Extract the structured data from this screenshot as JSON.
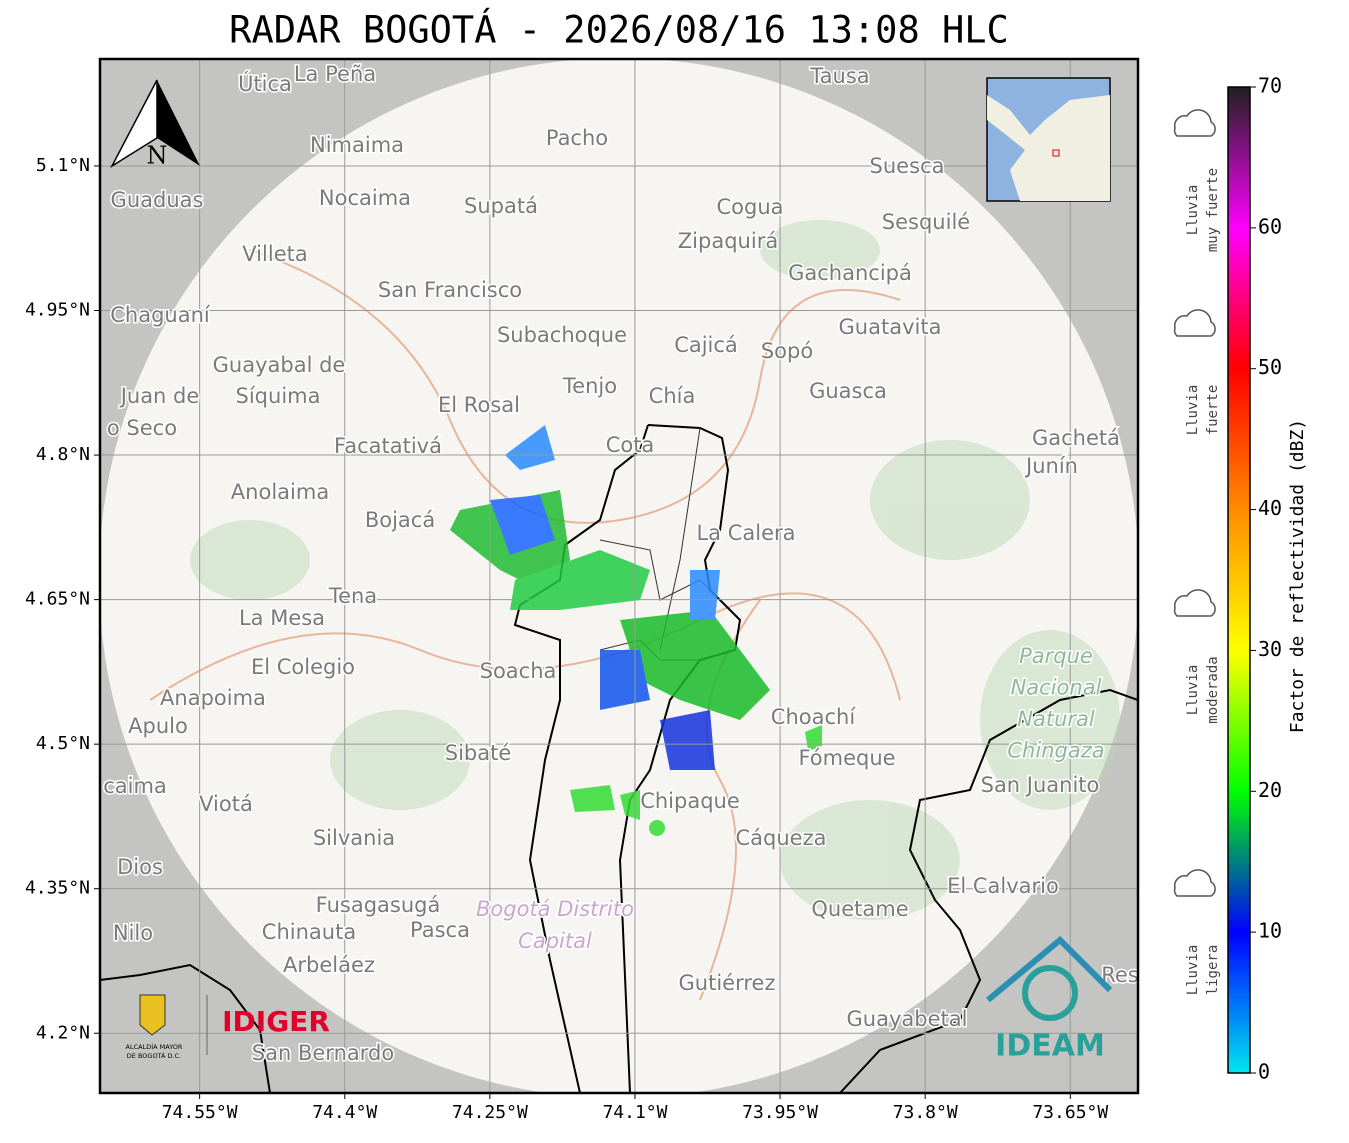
{
  "title": "RADAR BOGOTÁ - 2026/08/16 13:08 HLC",
  "map": {
    "xlim": [
      -74.653,
      -73.58
    ],
    "ylim": [
      4.138,
      5.211
    ],
    "xticks": [
      {
        "value": -74.55,
        "label": "74.55°W"
      },
      {
        "value": -74.4,
        "label": "74.4°W"
      },
      {
        "value": -74.25,
        "label": "74.25°W"
      },
      {
        "value": -74.1,
        "label": "74.1°W"
      },
      {
        "value": -73.95,
        "label": "73.95°W"
      },
      {
        "value": -73.8,
        "label": "73.8°W"
      },
      {
        "value": -73.65,
        "label": "73.65°W"
      }
    ],
    "yticks": [
      {
        "value": 5.1,
        "label": "5.1°N"
      },
      {
        "value": 4.95,
        "label": "4.95°N"
      },
      {
        "value": 4.8,
        "label": "4.8°N"
      },
      {
        "value": 4.65,
        "label": "4.65°N"
      },
      {
        "value": 4.5,
        "label": "4.5°N"
      },
      {
        "value": 4.35,
        "label": "4.35°N"
      },
      {
        "value": 4.2,
        "label": "4.2°N"
      }
    ],
    "north": "N",
    "places": [
      "Útica",
      "La Peña",
      "Tausa",
      "Pacho",
      "Nimaima",
      "Guaduas",
      "Nocaima",
      "Supatá",
      "Cogua",
      "Suesca",
      "Sesquilé",
      "Zipaquirá",
      "Villeta",
      "Gachancipá",
      "San Francisco",
      "Chaguaní",
      "Guatavita",
      "Subachoque",
      "Cajicá",
      "Sopó",
      "Guayabal de",
      "Síquima",
      "Juan de",
      "o Seco",
      "Tenjo",
      "Chía",
      "Guasca",
      "El Rosal",
      "Facatativá",
      "Cota",
      "Gachetá",
      "Junín",
      "Anolaima",
      "Bojacá",
      "La Calera",
      "Tena",
      "La Mesa",
      "El Colegio",
      "Soacha",
      "Anapoima",
      "Apulo",
      "Choachí",
      "Sibaté",
      "Fómeque",
      "San Juanito",
      "caima",
      "Viotá",
      "Chipaque",
      "Silvania",
      "Cáqueza",
      "Dios",
      "El Calvario",
      "Fusagasugá",
      "Quetame",
      "Nilo",
      "Chinauta",
      "Pasca",
      "Arbeláez",
      "Gutiérrez",
      "Res",
      "Guayabetal",
      "San Bernardo"
    ],
    "park": [
      "Parque",
      "Nacional",
      "Natural",
      "Chingaza"
    ],
    "district": [
      "Bogotá Distrito",
      "Capital"
    ],
    "logos": {
      "alcaldia": [
        "ALCALDÍA MAYOR",
        "DE BOGOTÁ D.C."
      ],
      "idiger": "IDIGER",
      "ideam": "IDEAM"
    }
  },
  "colorbar": {
    "label": "Factor de reflectividad (dBZ)",
    "lim": [
      0,
      70
    ],
    "ticks": [
      0,
      10,
      20,
      30,
      40,
      50,
      60,
      70
    ],
    "colors": [
      "#00e5f0",
      "#0000ff",
      "#00ff00",
      "#ffff00",
      "#ff8c00",
      "#ff0000",
      "#ff00ff",
      "#202020"
    ]
  },
  "legend": [
    [
      "Lluvia",
      "muy fuerte"
    ],
    [
      "Lluvia",
      "fuerte"
    ],
    [
      "Lluvia",
      "moderada"
    ],
    [
      "Lluvia",
      "ligera"
    ]
  ]
}
